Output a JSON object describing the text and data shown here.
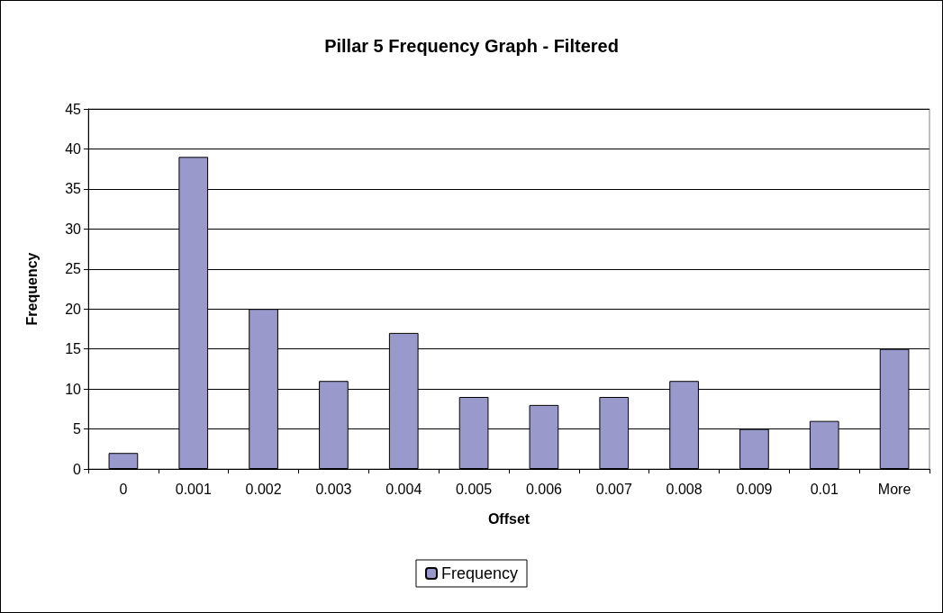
{
  "chart_data": {
    "type": "bar",
    "title": "Pillar 5 Frequency Graph - Filtered",
    "xlabel": "Offset",
    "ylabel": "Frequency",
    "categories": [
      "0",
      "0.001",
      "0.002",
      "0.003",
      "0.004",
      "0.005",
      "0.006",
      "0.007",
      "0.008",
      "0.009",
      "0.01",
      "More"
    ],
    "series": [
      {
        "name": "Frequency",
        "color": "#9999cc",
        "values": [
          2,
          39,
          20,
          11,
          17,
          9,
          8,
          9,
          11,
          5,
          6,
          15
        ]
      }
    ],
    "ylim": [
      0,
      45
    ],
    "yticks": [
      0,
      5,
      10,
      15,
      20,
      25,
      30,
      35,
      40,
      45
    ],
    "grid": "y",
    "legend": "bottom"
  }
}
